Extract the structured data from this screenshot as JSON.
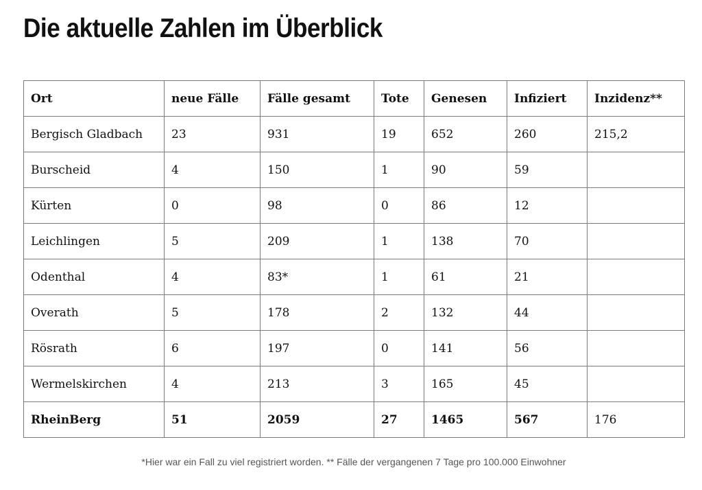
{
  "title": "Die aktuelle Zahlen im Überblick",
  "table": {
    "headers": [
      "Ort",
      "neue Fälle",
      "Fälle gesamt",
      "Tote",
      "Genesen",
      "Infiziert",
      "Inzidenz**"
    ],
    "rows": [
      [
        "Bergisch Gladbach",
        "23",
        "931",
        "19",
        "652",
        "260",
        "215,2"
      ],
      [
        "Burscheid",
        "4",
        "150",
        "1",
        "90",
        "59",
        ""
      ],
      [
        "Kürten",
        "0",
        "98",
        "0",
        "86",
        "12",
        ""
      ],
      [
        "Leichlingen",
        "5",
        "209",
        "1",
        "138",
        "70",
        ""
      ],
      [
        "Odenthal",
        "4",
        "83*",
        "1",
        "61",
        "21",
        ""
      ],
      [
        "Overath",
        "5",
        "178",
        "2",
        "132",
        "44",
        ""
      ],
      [
        "Rösrath",
        "6",
        "197",
        "0",
        "141",
        "56",
        ""
      ],
      [
        "Wermelskirchen",
        "4",
        "213",
        "3",
        "165",
        "45",
        ""
      ]
    ],
    "total": [
      "RheinBerg",
      "51",
      "2059",
      "27",
      "1465",
      "567",
      "176"
    ]
  },
  "footnote": "*Hier war ein Fall zu viel registriert worden. ** Fälle der vergangenen 7 Tage pro 100.000 Einwohner"
}
